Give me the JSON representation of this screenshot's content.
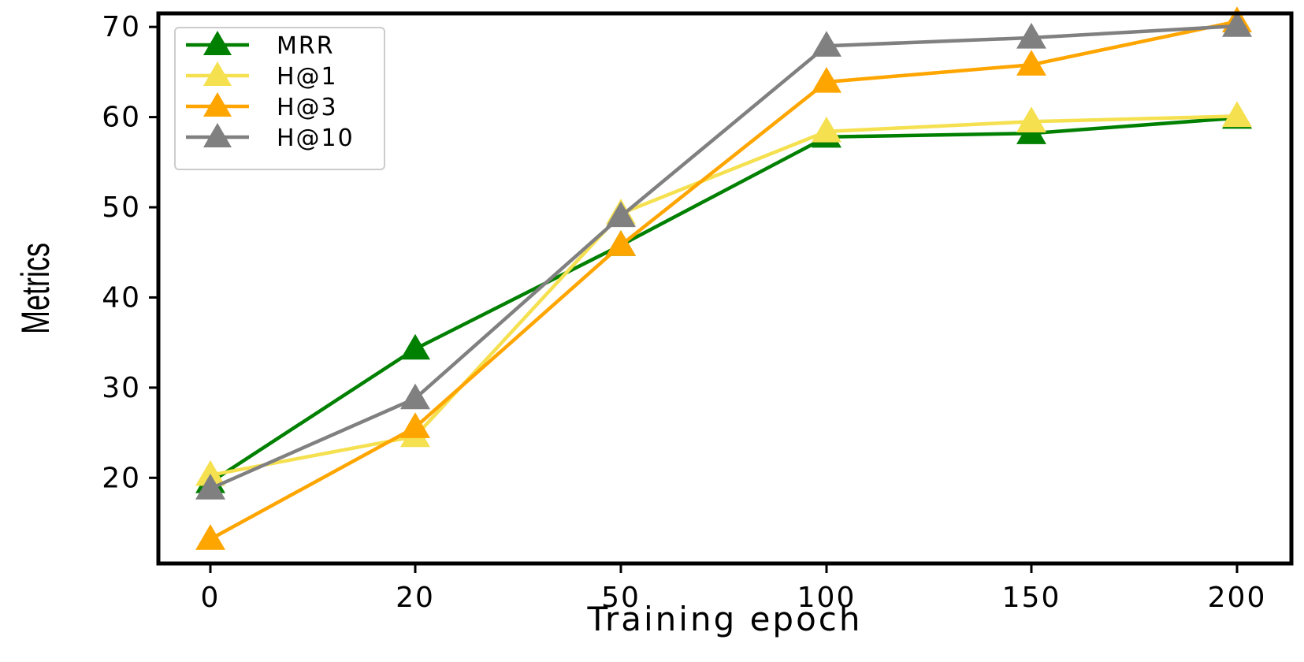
{
  "chart_data": {
    "type": "line",
    "title": "",
    "xlabel": "Training epoch",
    "ylabel": "Metrics",
    "categories": [
      "0",
      "20",
      "50",
      "100",
      "150",
      "200"
    ],
    "ylim": [
      10.5,
      71.5
    ],
    "yticks": [
      20,
      30,
      40,
      50,
      60,
      70
    ],
    "grid": false,
    "legend_position": "top-left",
    "marker": "triangle-up",
    "series": [
      {
        "name": "MRR",
        "color": "#008000",
        "values": [
          19.5,
          34.3,
          45.8,
          57.8,
          58.2,
          59.9
        ]
      },
      {
        "name": "H@1",
        "color": "#f5e050",
        "values": [
          20.3,
          24.6,
          49.3,
          58.4,
          59.5,
          60.1
        ]
      },
      {
        "name": "H@3",
        "color": "#ffa500",
        "values": [
          13.2,
          25.6,
          45.8,
          63.9,
          65.8,
          70.6
        ]
      },
      {
        "name": "H@10",
        "color": "#808080",
        "values": [
          18.8,
          28.8,
          49.0,
          67.9,
          68.8,
          70.1
        ]
      }
    ]
  }
}
